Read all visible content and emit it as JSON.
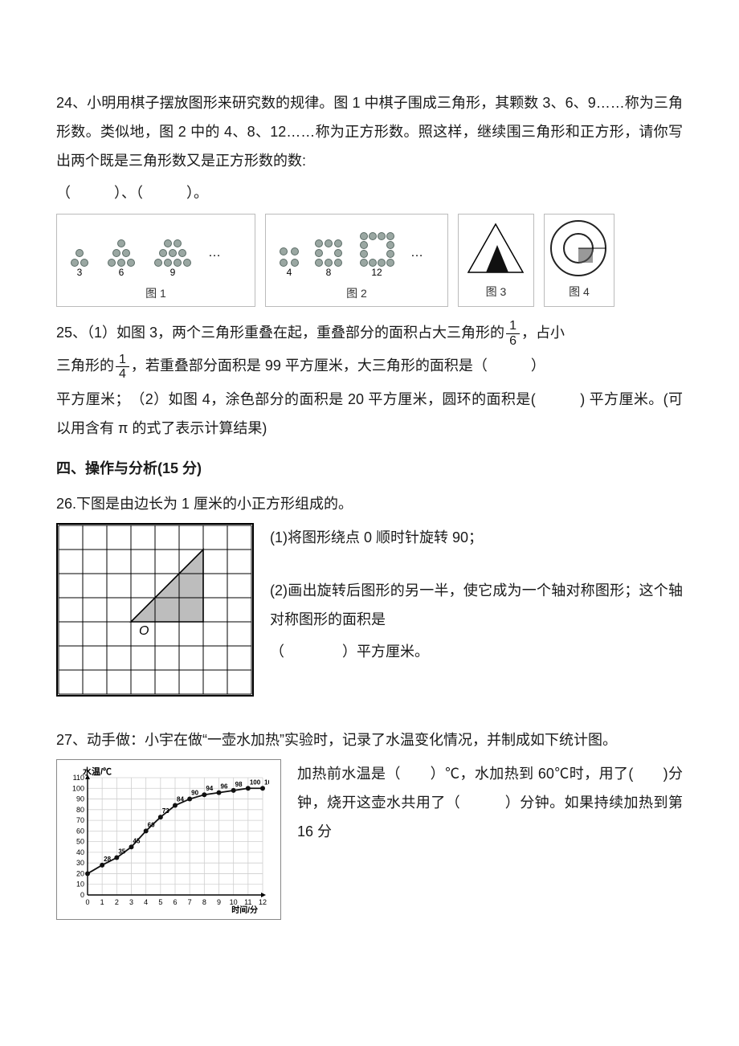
{
  "q24": {
    "num": "24、",
    "t1": "小明用棋子摆放图形来研究数的规律。图 1 中棋子围成三角形，其颗数 3、6、9……称为三角形数。类似地，图 2 中的 4、8、12……称为正方形数。照这样，继续围三角形和正方形，请你写出两个既是三角形数又是正方形数的数:",
    "t2": "（　　　）、（　　　）。",
    "fig": {
      "tri_counts": [
        "3",
        "6",
        "9"
      ],
      "sq_counts": [
        "4",
        "8",
        "12"
      ],
      "dots": "…",
      "lab1": "图 1",
      "lab2": "图 2",
      "lab3": "图 3",
      "lab4": "图 4",
      "dot_color": "#9aa7a2",
      "dot_stroke": "#5a6b66",
      "tri_fill": "#111111",
      "ring_stroke": "#222222",
      "sq_fill": "#555555"
    }
  },
  "q25": {
    "num": "25、",
    "p1a": "（1）如图 3，两个三角形重叠在起，重叠部分的面积占大三角形的",
    "frac1_num": "1",
    "frac1_den": "6",
    "p1b": "，占小",
    "p2a": "三角形的",
    "frac2_num": "1",
    "frac2_den": "4",
    "p2b": "，若重叠部分面积是 99 平方厘米，大三角形的面积是（　　　）",
    "p3": "平方厘米；　（2）如图 4，涂色部分的面积是 20 平方厘米，圆环的面积是(　　　) 平方厘米。(可以用含有 π 的式了表示计算结果)"
  },
  "section4": "四、操作与分析(15 分)",
  "q26": {
    "line1": "26.下图是由边长为 1 厘米的小正方形组成的。",
    "r1": "(1)将图形绕点 0 顺时针旋转 90；",
    "r2a": "(2)画出旋转后图形的另一半，使它成为一个轴对称图形；这个轴对称图形的面积是",
    "r2b": "（　　　　）平方厘米。",
    "grid": {
      "cols": 8,
      "rows": 7,
      "cell": 30,
      "stroke": "#000000",
      "fill": "#bdbdbd",
      "O_label": "O",
      "triangle": [
        [
          3,
          4
        ],
        [
          6,
          1
        ],
        [
          6,
          4
        ]
      ]
    }
  },
  "q27": {
    "line1": "27、动手做：小宇在做“一壶水加热”实验时，记录了水温变化情况，并制成如下统计图。",
    "r1": "加热前水温是（　　）℃，水加热到 60℃时，用了(　　)分钟，烧开这壶水共用了（　　　）分钟。如果持续加热到第 16 分",
    "chart": {
      "type": "line",
      "title": "水温/℃",
      "xtitle": "时间/分",
      "x": [
        0,
        1,
        2,
        3,
        4,
        5,
        6,
        7,
        8,
        9,
        10,
        11,
        12
      ],
      "y": [
        20,
        28,
        35,
        45,
        60,
        73,
        84,
        90,
        94,
        96,
        98,
        100,
        100
      ],
      "ylim": [
        0,
        110
      ],
      "ytick_step": 10,
      "xlim": [
        0,
        12
      ],
      "xtick_step": 1,
      "line_color": "#111111",
      "marker": "circle",
      "marker_size": 3,
      "bg": "#ffffff",
      "grid_color": "#cfcfcf",
      "axis_color": "#000000",
      "font_size": 9,
      "label_points": [
        1,
        2,
        3,
        4,
        5,
        6,
        7,
        8,
        9,
        10,
        11,
        12
      ]
    }
  }
}
